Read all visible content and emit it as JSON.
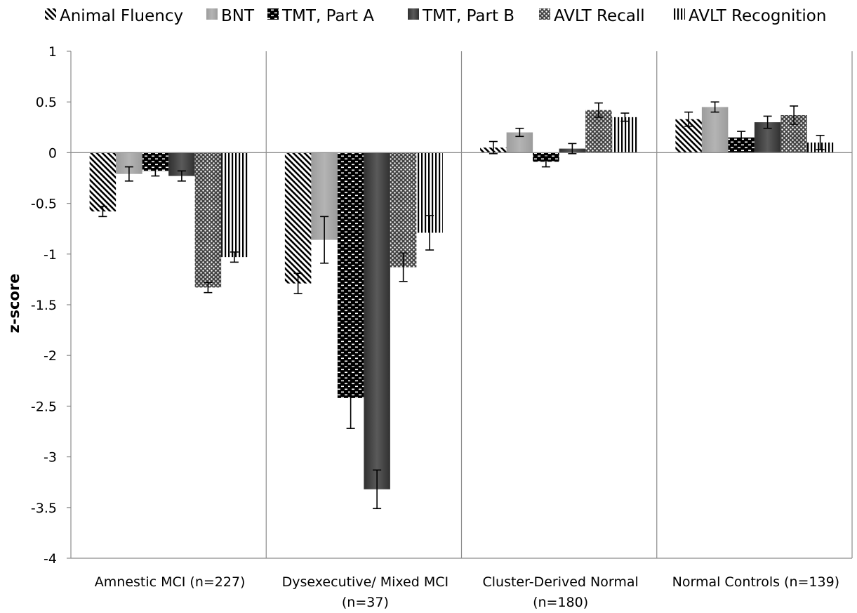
{
  "chart_data": {
    "type": "bar",
    "ylabel": "z-score",
    "ylim": [
      -4,
      1
    ],
    "yticks": [
      1,
      0.5,
      0,
      -0.5,
      -1,
      -1.5,
      -2,
      -2.5,
      -3,
      -3.5,
      -4
    ],
    "legend_position": "top",
    "categories": [
      [
        "Amnestic MCI (n=227)"
      ],
      [
        "Dysexecutive/ Mixed MCI",
        "(n=37)"
      ],
      [
        "Cluster-Derived Normal",
        "(n=180)"
      ],
      [
        "Normal Controls (n=139)"
      ]
    ],
    "series": [
      {
        "name": "Animal Fluency",
        "pattern": "diagonal-stripes",
        "values": [
          -0.58,
          -1.29,
          0.05,
          0.33
        ],
        "errors": [
          0.05,
          0.1,
          0.06,
          0.07
        ]
      },
      {
        "name": "BNT",
        "pattern": "solid-light-gray",
        "values": [
          -0.21,
          -0.86,
          0.2,
          0.45
        ],
        "errors": [
          0.07,
          0.23,
          0.04,
          0.05
        ]
      },
      {
        "name": "TMT, Part A",
        "pattern": "checker-dash",
        "values": [
          -0.18,
          -2.42,
          -0.09,
          0.15
        ],
        "errors": [
          0.05,
          0.3,
          0.05,
          0.06
        ]
      },
      {
        "name": "TMT, Part B",
        "pattern": "solid-dark-gray",
        "values": [
          -0.23,
          -3.32,
          0.04,
          0.3
        ],
        "errors": [
          0.05,
          0.19,
          0.05,
          0.06
        ]
      },
      {
        "name": "AVLT Recall",
        "pattern": "crosshatch-dots",
        "values": [
          -1.33,
          -1.13,
          0.42,
          0.37
        ],
        "errors": [
          0.05,
          0.14,
          0.07,
          0.09
        ]
      },
      {
        "name": "AVLT Recognition",
        "pattern": "vertical-stripes",
        "values": [
          -1.03,
          -0.79,
          0.35,
          0.1
        ],
        "errors": [
          0.05,
          0.17,
          0.04,
          0.07
        ]
      }
    ],
    "colors": {
      "axis": "#8c8c8c",
      "errorbar": "#000000",
      "light_gray": "#a6a6a6",
      "dark_gray": "#404040"
    }
  }
}
